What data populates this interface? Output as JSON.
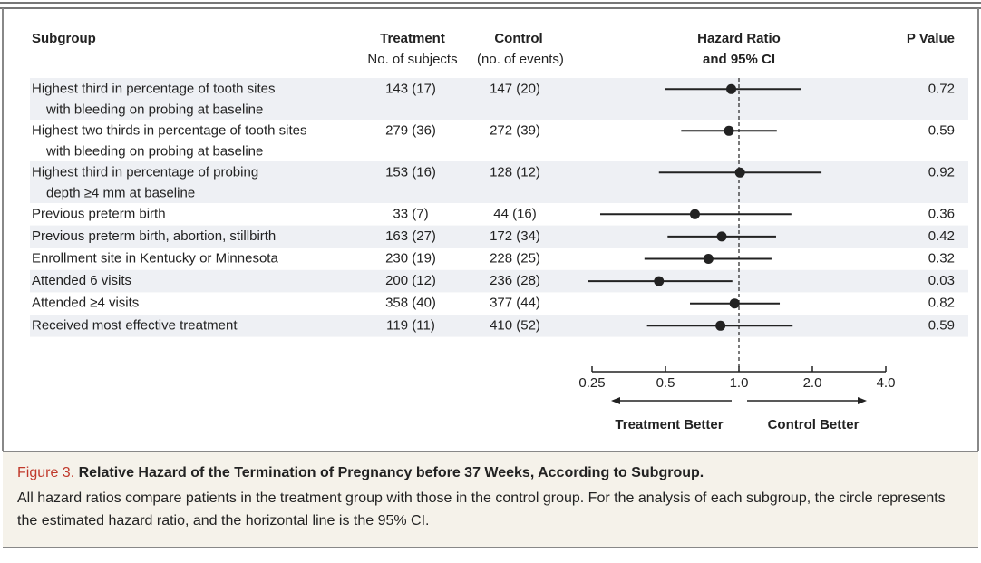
{
  "chart_data": {
    "type": "forest",
    "columns": {
      "subgroup": "Subgroup",
      "treatment": [
        "Treatment",
        "No. of subjects"
      ],
      "control": [
        "Control",
        "(no. of events)"
      ],
      "hazard": [
        "Hazard Ratio",
        "and 95% CI"
      ],
      "p": "P Value"
    },
    "rows": [
      {
        "label": [
          "Highest third in percentage of tooth sites",
          "with bleeding on probing at baseline"
        ],
        "treatment": "143 (17)",
        "control": "147 (20)",
        "hr": 0.93,
        "ci": [
          0.5,
          1.79
        ],
        "p": 0.72
      },
      {
        "label": [
          "Highest two thirds in percentage of tooth sites",
          "with bleeding on probing at baseline"
        ],
        "treatment": "279 (36)",
        "control": "272 (39)",
        "hr": 0.91,
        "ci": [
          0.58,
          1.43
        ],
        "p": 0.59
      },
      {
        "label": [
          "Highest third in percentage of probing",
          "depth ≥4 mm at baseline"
        ],
        "treatment": "153 (16)",
        "control": "128 (12)",
        "hr": 1.01,
        "ci": [
          0.47,
          2.18
        ],
        "p": 0.92
      },
      {
        "label": [
          "Previous preterm birth"
        ],
        "treatment": "33 (7)",
        "control": "44 (16)",
        "hr": 0.66,
        "ci": [
          0.27,
          1.64
        ],
        "p": 0.36
      },
      {
        "label": [
          "Previous preterm birth, abortion, stillbirth"
        ],
        "treatment": "163 (27)",
        "control": "172 (34)",
        "hr": 0.85,
        "ci": [
          0.51,
          1.42
        ],
        "p": 0.42
      },
      {
        "label": [
          "Enrollment site in Kentucky or Minnesota"
        ],
        "treatment": "230 (19)",
        "control": "228 (25)",
        "hr": 0.75,
        "ci": [
          0.41,
          1.36
        ],
        "p": 0.32
      },
      {
        "label": [
          "Attended 6 visits"
        ],
        "treatment": "200 (12)",
        "control": "236 (28)",
        "hr": 0.47,
        "ci": [
          0.24,
          0.94
        ],
        "p": 0.03
      },
      {
        "label": [
          "Attended ≥4 visits"
        ],
        "treatment": "358 (40)",
        "control": "377 (44)",
        "hr": 0.96,
        "ci": [
          0.63,
          1.47
        ],
        "p": 0.82
      },
      {
        "label": [
          "Received most effective treatment"
        ],
        "treatment": "119 (11)",
        "control": "410 (52)",
        "hr": 0.84,
        "ci": [
          0.42,
          1.66
        ],
        "p": 0.59
      }
    ],
    "log_scale": true,
    "xlim": [
      0.25,
      4
    ],
    "xticks": [
      0.25,
      0.5,
      {
        "value": 1,
        "label": "1.0"
      },
      {
        "value": 2,
        "label": "2.0"
      },
      {
        "value": 4,
        "label": "4.0"
      }
    ],
    "reference": 1,
    "arrows": [
      "Treatment Better",
      "Control Better"
    ]
  },
  "caption": {
    "label": "Figure 3.",
    "title": "Relative Hazard of the Termination of Pregnancy before 37 Weeks, According to Subgroup.",
    "text": "All hazard ratios compare patients in the treatment group with those in the control group. For the analysis of each subgroup, the circle represents the estimated hazard ratio, and the horizontal line is the 95% CI."
  }
}
